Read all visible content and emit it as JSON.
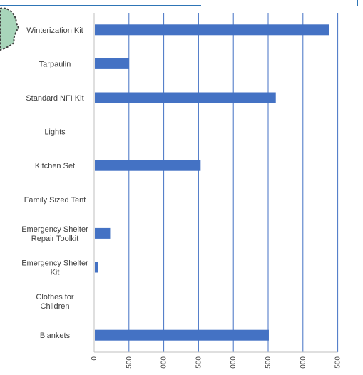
{
  "colors": {
    "bar": "#4472c4",
    "gridline": "#4472c4",
    "axis": "#bfbfbf",
    "label": "#404040",
    "top_rule": "#2e75b6",
    "corner_mark": "#2e75b6",
    "map_fill": "#a8d5ba"
  },
  "chart_data": {
    "type": "bar",
    "orientation": "horizontal",
    "title": "",
    "xlabel": "",
    "ylabel": "",
    "grid": true,
    "legend": "none",
    "xlim": [
      0,
      3500
    ],
    "x_ticks": [
      {
        "value": 0,
        "label": "0"
      },
      {
        "value": 500,
        "label": "500"
      },
      {
        "value": 1000,
        "label": "000"
      },
      {
        "value": 1500,
        "label": "500"
      },
      {
        "value": 2000,
        "label": "000"
      },
      {
        "value": 2500,
        "label": "500"
      },
      {
        "value": 3000,
        "label": "000"
      },
      {
        "value": 3500,
        "label": "500"
      }
    ],
    "categories": [
      "Winterization Kit",
      "Tarpaulin",
      "Standard NFI Kit",
      "Lights",
      "Kitchen Set",
      "Family Sized Tent",
      "Emergency Shelter\nRepair Toolkit",
      "Emergency Shelter\nKit",
      "Clothes for\nChildren",
      "Blankets"
    ],
    "values": [
      3380,
      500,
      2610,
      0,
      1530,
      0,
      230,
      60,
      0,
      2510
    ]
  }
}
